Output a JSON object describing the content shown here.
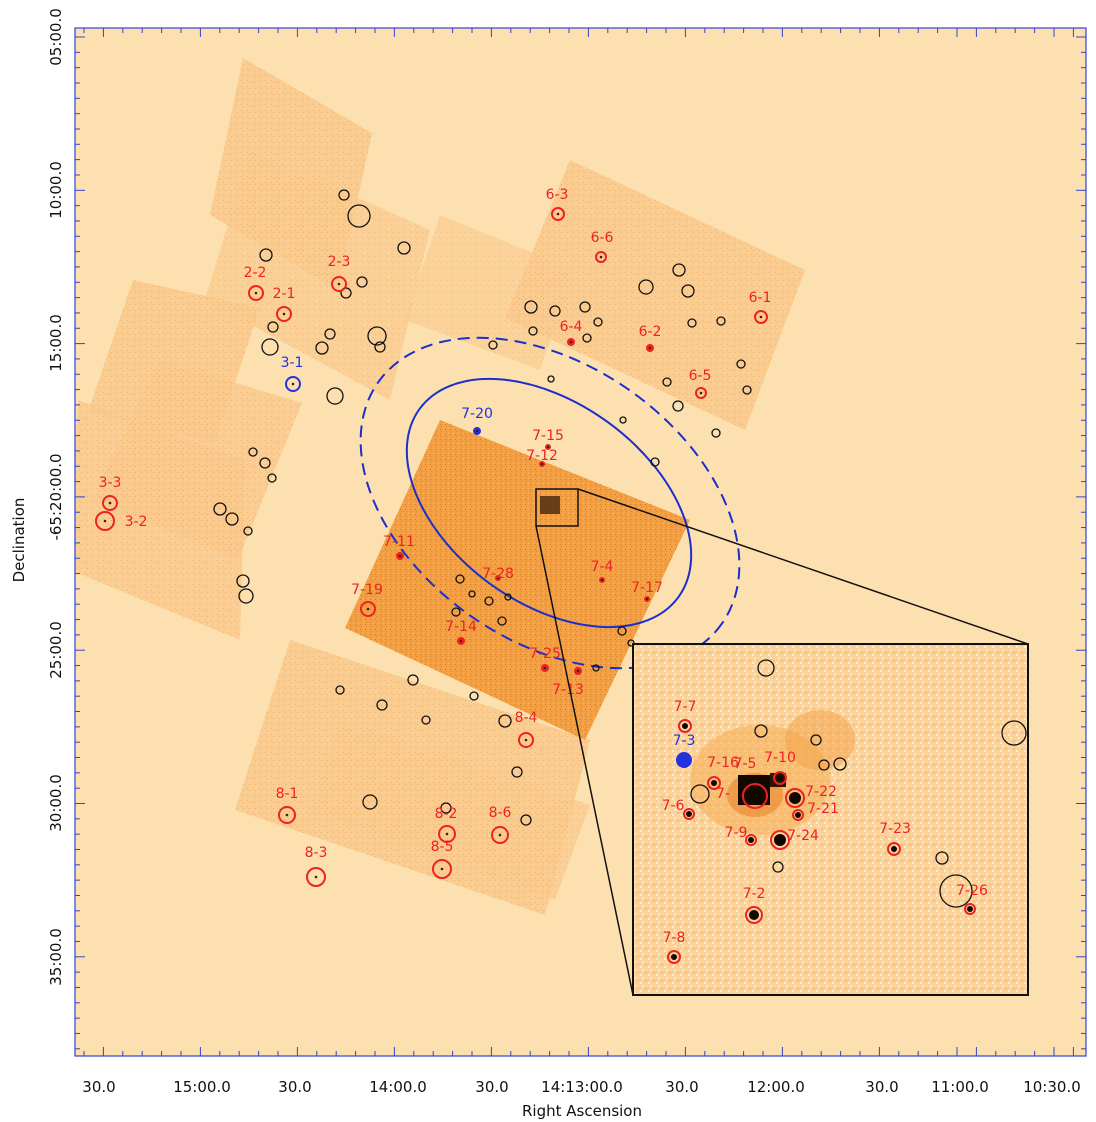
{
  "chart_data": {
    "type": "scatter",
    "xlabel": "Right Ascension",
    "ylabel": "Declination",
    "x_ticks": [
      "30.0",
      "15:00.0",
      "30.0",
      "14:00.0",
      "30.0",
      "14:13:00.0",
      "30.0",
      "12:00.0",
      "30.0",
      "11:00.0",
      "10:30.0"
    ],
    "y_ticks": [
      "05:00.0",
      "10:00.0",
      "15:00.0",
      "-65:20:00.0",
      "25:00.0",
      "30:00.0",
      "35:00.0"
    ],
    "colors": {
      "background": "#fde0b0",
      "chip": "#fcc98a",
      "center_chip": "#f3a045",
      "axis": "#3344cc",
      "red_source": "#ee2222",
      "blue_source": "#2233dd",
      "black_source": "#111111",
      "ellipse": "#1a2fcc",
      "inset_bg": "#fbd39a"
    },
    "red_sources": [
      "2-1",
      "2-2",
      "2-3",
      "3-2",
      "3-3",
      "6-1",
      "6-2",
      "6-3",
      "6-4",
      "6-5",
      "6-6",
      "7-2",
      "7-4",
      "7-6",
      "7-7",
      "7-8",
      "7-9",
      "7-10",
      "7-11",
      "7-12",
      "7-13",
      "7-14",
      "7-15",
      "7-16",
      "7-17",
      "7-19",
      "7-21",
      "7-22",
      "7-23",
      "7-24",
      "7-25",
      "7-26",
      "7-28",
      "8-1",
      "8-2",
      "8-3",
      "8-4",
      "8-5",
      "8-6"
    ],
    "blue_sources": [
      "3-1",
      "7-3",
      "7-20"
    ],
    "inset_labels": [
      "7-7",
      "7-3",
      "7-16",
      "7-5",
      "7-10",
      "7-6",
      "7-22",
      "7-21",
      "7-9",
      "7-24",
      "7-23",
      "7-26",
      "7-2",
      "7-8"
    ],
    "partial_labels": [
      "7-"
    ]
  }
}
